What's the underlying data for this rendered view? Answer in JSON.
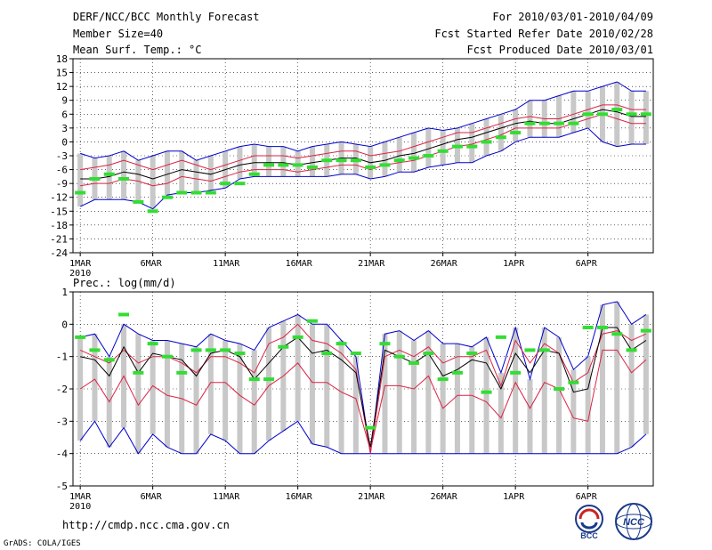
{
  "header": {
    "title": "DERF/NCC/BCC Monthly Forecast",
    "member": "Member Size=40",
    "variable": "Mean Surf. Temp.: °C",
    "period": "For 2010/03/01-2010/04/09",
    "start": "Fcst Started Refer Date 2010/02/28",
    "produced": "Fcst Produced Date 2010/03/01"
  },
  "footer": {
    "url": "http://cmdp.ncc.cma.gov.cn",
    "credit": "GrADS: COLA/IGES",
    "logo_left_text": "BCC",
    "logo_right_text": "NCC"
  },
  "colors": {
    "envelope": "#0000cc",
    "spread": "#dd2244",
    "mean": "#000000",
    "box": "#c8c8c8",
    "observed": "#33dd33",
    "grid": "#000000"
  },
  "chart_data": [
    {
      "type": "line",
      "title": "Mean Surf. Temp.: °C",
      "ylim": [
        -24,
        18
      ],
      "yticks": [
        -24,
        -21,
        -18,
        -15,
        -12,
        -9,
        -6,
        -3,
        0,
        3,
        6,
        9,
        12,
        15,
        18
      ],
      "x_ticks": [
        "1MAR\n2010",
        "6MAR",
        "11MAR",
        "16MAR",
        "21MAR",
        "26MAR",
        "1APR",
        "6APR"
      ],
      "days": 40,
      "series": [
        {
          "name": "max",
          "values": [
            -2.5,
            -3.5,
            -3,
            -2,
            -4,
            -3,
            -2,
            -2,
            -4,
            -3,
            -2,
            -1,
            -0.5,
            -1,
            -1,
            -2,
            -1,
            -0.5,
            0,
            -0.5,
            -1,
            0,
            1,
            2,
            3,
            2.5,
            3,
            4,
            5,
            6,
            7,
            9,
            9,
            10,
            11,
            11,
            12,
            13,
            11,
            11
          ]
        },
        {
          "name": "upper",
          "values": [
            -6,
            -5.5,
            -5,
            -4,
            -5,
            -6,
            -5,
            -4,
            -5,
            -6,
            -5,
            -4,
            -3,
            -3,
            -3,
            -3.5,
            -3,
            -2.5,
            -2,
            -2,
            -3,
            -2.5,
            -2,
            -1,
            0,
            1,
            2,
            2,
            3,
            4,
            5,
            5.5,
            5,
            5,
            6,
            7,
            8,
            8,
            7,
            7
          ]
        },
        {
          "name": "mean",
          "values": [
            -8,
            -8,
            -7.5,
            -6.5,
            -7,
            -8,
            -7,
            -6,
            -6.5,
            -7,
            -6,
            -5,
            -4.5,
            -4.5,
            -4.5,
            -5,
            -4.5,
            -4,
            -3.5,
            -3.5,
            -4.5,
            -4,
            -3,
            -2.5,
            -1.5,
            -0.5,
            0.5,
            1,
            2,
            3,
            4,
            4.5,
            4,
            4,
            5,
            6,
            7,
            6.5,
            5.5,
            5.5
          ]
        },
        {
          "name": "lower",
          "values": [
            -9.5,
            -9,
            -9,
            -8,
            -8.5,
            -9.5,
            -9,
            -7.5,
            -8,
            -8.5,
            -7.5,
            -6.5,
            -6,
            -6,
            -6,
            -6.5,
            -6,
            -5.5,
            -5,
            -5,
            -6,
            -5,
            -4.5,
            -4,
            -3,
            -2,
            -1,
            -0.5,
            0.5,
            1.5,
            3,
            3,
            3,
            3,
            4,
            5,
            6,
            5,
            4,
            4
          ]
        },
        {
          "name": "min",
          "values": [
            -14,
            -12.5,
            -12.5,
            -12.5,
            -13,
            -14.5,
            -11.5,
            -11,
            -11,
            -10.5,
            -10,
            -8,
            -7.5,
            -7.5,
            -7.5,
            -7.5,
            -7.5,
            -7.5,
            -7,
            -7,
            -8,
            -7.5,
            -6.5,
            -6.5,
            -5.5,
            -5,
            -4.5,
            -4.5,
            -3,
            -2,
            0,
            1,
            1,
            1,
            2,
            3,
            0,
            -1,
            -0.5,
            -0.5
          ]
        },
        {
          "name": "observed",
          "values": [
            -11,
            -8,
            -7,
            -8,
            -13,
            -15,
            -12,
            -11,
            -11,
            -11,
            -9,
            -9,
            -7,
            -5,
            -5,
            -5,
            -5.5,
            -4,
            -4,
            -4,
            -5.5,
            -5,
            -4,
            -3.5,
            -3,
            -2,
            -1,
            -1,
            0,
            1,
            2,
            4,
            4,
            4,
            4,
            6,
            6,
            7,
            6,
            6
          ]
        }
      ]
    },
    {
      "type": "line",
      "title": "Prec.: log(mm/d)",
      "ylim": [
        -5,
        1
      ],
      "yticks": [
        -5,
        -4,
        -3,
        -2,
        -1,
        0,
        1
      ],
      "x_ticks": [
        "1MAR\n2010",
        "6MAR",
        "11MAR",
        "16MAR",
        "21MAR",
        "26MAR",
        "1APR",
        "6APR"
      ],
      "days": 40,
      "series": [
        {
          "name": "max",
          "values": [
            -0.4,
            -0.3,
            -1,
            0,
            -0.3,
            -0.5,
            -0.5,
            -0.6,
            -0.7,
            -0.3,
            -0.5,
            -0.6,
            -0.8,
            -0.1,
            0.1,
            0.3,
            0,
            0,
            -0.5,
            -1,
            -4,
            -0.3,
            -0.2,
            -0.5,
            -0.2,
            -0.6,
            -0.6,
            -0.7,
            -0.4,
            -1.5,
            -0.1,
            -1.7,
            -0.1,
            -0.4,
            -1.4,
            -1,
            0.6,
            0.7,
            0,
            0.3
          ]
        },
        {
          "name": "upper",
          "values": [
            -0.8,
            -1,
            -1.2,
            -0.8,
            -1.2,
            -1,
            -1,
            -1.2,
            -1.5,
            -1,
            -1,
            -1.2,
            -1.5,
            -0.6,
            -0.4,
            0,
            -0.5,
            -0.6,
            -0.9,
            -1.4,
            -4,
            -1,
            -0.8,
            -1,
            -0.7,
            -1.2,
            -1,
            -1,
            -0.8,
            -1.9,
            -0.5,
            -1.2,
            -0.6,
            -0.9,
            -1.8,
            -1.5,
            -0.3,
            -0.2,
            -0.5,
            -0.3
          ]
        },
        {
          "name": "mean",
          "values": [
            -1,
            -1.1,
            -1.6,
            -0.7,
            -1.5,
            -0.9,
            -1,
            -1.1,
            -1.6,
            -0.9,
            -0.8,
            -1,
            -1.7,
            -1.2,
            -0.7,
            -0.4,
            -0.9,
            -0.8,
            -1.1,
            -1.5,
            -3.8,
            -0.8,
            -1,
            -1.2,
            -0.9,
            -1.6,
            -1.4,
            -1.1,
            -1.2,
            -2,
            -0.9,
            -1.5,
            -0.8,
            -0.9,
            -2.1,
            -2,
            -0.1,
            -0.1,
            -0.8,
            -0.5
          ]
        },
        {
          "name": "lower",
          "values": [
            -2,
            -1.7,
            -2.4,
            -1.6,
            -2.5,
            -1.9,
            -2.2,
            -2.3,
            -2.5,
            -1.8,
            -1.8,
            -2.2,
            -2.5,
            -1.9,
            -1.6,
            -1.2,
            -1.8,
            -1.8,
            -2.1,
            -2.3,
            -3.9,
            -1.9,
            -1.9,
            -2,
            -1.6,
            -2.6,
            -2.2,
            -2.2,
            -2.4,
            -2.9,
            -1.8,
            -2.6,
            -1.8,
            -2,
            -2.9,
            -3,
            -0.8,
            -0.8,
            -1.5,
            -1.1
          ]
        },
        {
          "name": "min",
          "values": [
            -3.6,
            -3,
            -3.8,
            -3.2,
            -4,
            -3.4,
            -3.8,
            -4,
            -4,
            -3.4,
            -3.6,
            -4,
            -4,
            -3.6,
            -3.3,
            -3,
            -3.7,
            -3.8,
            -4,
            -4,
            -4,
            -4,
            -4,
            -4,
            -4,
            -4,
            -4,
            -4,
            -4,
            -4,
            -4,
            -4,
            -4,
            -4,
            -4,
            -4,
            -4,
            -4,
            -3.8,
            -3.4
          ]
        },
        {
          "name": "observed",
          "values": [
            -0.4,
            -0.8,
            -1.1,
            0.3,
            -1.5,
            -0.6,
            -1,
            -1.5,
            -0.8,
            -0.8,
            -0.8,
            -0.9,
            -1.7,
            -1.7,
            -0.7,
            -0.4,
            0.1,
            -0.9,
            -0.6,
            -0.9,
            -3.2,
            -0.6,
            -1,
            -1.2,
            -0.9,
            -1.7,
            -1.5,
            -0.9,
            -2.1,
            -0.4,
            -1.5,
            -0.8,
            -0.8,
            -2,
            -1.8,
            -0.1,
            -0.1,
            -0.3,
            -0.8,
            -0.2
          ]
        }
      ]
    }
  ]
}
